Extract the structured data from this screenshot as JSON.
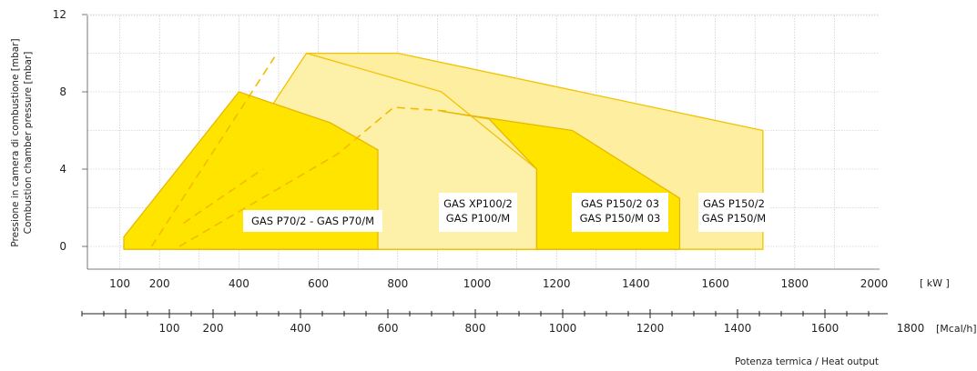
{
  "chart_data": {
    "type": "area",
    "title": "",
    "ylabel": [
      "Pressione in camera di combustione [mbar]",
      "Combustion chamber pressure [mbar]"
    ],
    "xlabel": "Potenza termica / Heat output",
    "ylim": [
      -1,
      12
    ],
    "yticks": [
      0,
      4,
      8,
      12
    ],
    "x_kw": {
      "unit": "[ kW ]",
      "range": [
        0,
        2000
      ],
      "ticks": [
        100,
        200,
        400,
        600,
        800,
        1000,
        1200,
        1400,
        1600,
        1800,
        2000
      ]
    },
    "x_mcal": {
      "unit": "[Mcal/h]",
      "ticks": [
        100,
        200,
        400,
        600,
        800,
        1000,
        1200,
        1400,
        1600,
        1800
      ]
    },
    "grid": true,
    "series": [
      {
        "name": "GAS P150/2 - GAS P150/M",
        "label": [
          "GAS P150/2",
          "GAS P150/M"
        ],
        "color": "#fdeea0",
        "edge": "#f2c200",
        "points": [
          [
            330,
            0
          ],
          [
            570,
            10
          ],
          [
            800,
            10
          ],
          [
            1720,
            6
          ],
          [
            1720,
            -0.15
          ],
          [
            330,
            -0.15
          ]
        ]
      },
      {
        "name": "GAS XP100/2 - GAS P100/M",
        "label": [
          "GAS XP100/2",
          "GAS P100/M"
        ],
        "color": "#fdf0a8",
        "edge": "#f2c200",
        "points": [
          [
            250,
            0
          ],
          [
            570,
            10
          ],
          [
            910,
            8
          ],
          [
            1150,
            4
          ],
          [
            1150,
            -0.15
          ],
          [
            250,
            -0.15
          ]
        ]
      },
      {
        "name": "GAS P150/2 03 - GAS P150/M 03",
        "label": [
          "GAS P150/2 03",
          "GAS P150/M 03"
        ],
        "color": "#ffe400",
        "edge": "#e8b800",
        "points": [
          [
            1150,
            4
          ],
          [
            1150,
            -0.15
          ],
          [
            1510,
            -0.15
          ],
          [
            1510,
            2.5
          ],
          [
            1240,
            6
          ],
          [
            910,
            7
          ],
          [
            1030,
            6.6
          ]
        ]
      },
      {
        "name": "GAS P70/2 - GAS P70/M",
        "label": [
          "GAS P70/2 - GAS P70/M"
        ],
        "color": "#ffe400",
        "edge": "#e8b800",
        "points": [
          [
            110,
            0.5
          ],
          [
            400,
            8
          ],
          [
            630,
            6.4
          ],
          [
            750,
            5
          ],
          [
            750,
            -0.15
          ],
          [
            110,
            -0.15
          ]
        ]
      }
    ],
    "dashed_lines": [
      {
        "name": "dashed-xp100",
        "points": [
          [
            180,
            0
          ],
          [
            490,
            9.8
          ]
        ]
      },
      {
        "name": "dashed-p150-03",
        "points": [
          [
            250,
            0
          ],
          [
            650,
            4.8
          ],
          [
            790,
            7.2
          ],
          [
            930,
            7
          ]
        ]
      },
      {
        "name": "dashed-p70",
        "points": [
          [
            260,
            1.2
          ],
          [
            460,
            4
          ]
        ]
      }
    ]
  }
}
